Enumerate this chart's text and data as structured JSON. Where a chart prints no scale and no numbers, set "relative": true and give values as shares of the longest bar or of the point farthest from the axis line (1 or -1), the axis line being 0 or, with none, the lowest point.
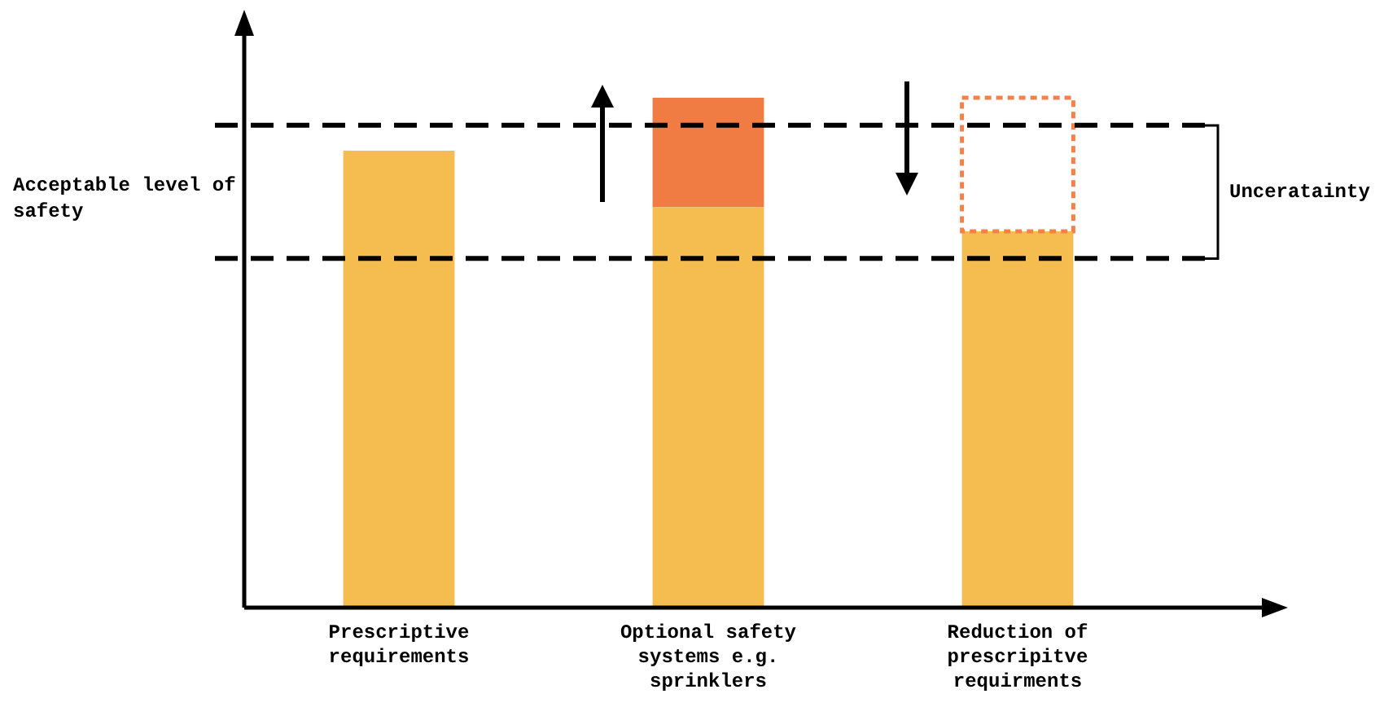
{
  "chart_data": {
    "type": "bar",
    "relative": true,
    "stacked": true,
    "tick_labels": "x",
    "legend": false,
    "grid": false,
    "categories": [
      "Prescriptive requirements",
      "Optional safety systems e.g. sprinklers",
      "Reduction of prescripitve requirments"
    ],
    "series": [
      {
        "color": "#f5bd4f",
        "values": [
          0.896,
          0.785,
          0.738
        ]
      },
      {
        "color": "#f07c43",
        "values": [
          null,
          0.215,
          null
        ]
      },
      {
        "color": "#f4804a",
        "line_style": "dotted",
        "values": [
          null,
          null,
          0.262
        ]
      }
    ],
    "ref_lines": [
      {
        "axis": "y",
        "value": 0.946,
        "line_style": "dashed",
        "color": "#000000"
      },
      {
        "axis": "y",
        "value": 0.685,
        "line_style": "dashed",
        "color": "#000000"
      }
    ],
    "annotations": [
      "Acceptable level of safety",
      "Unceratainty"
    ]
  }
}
